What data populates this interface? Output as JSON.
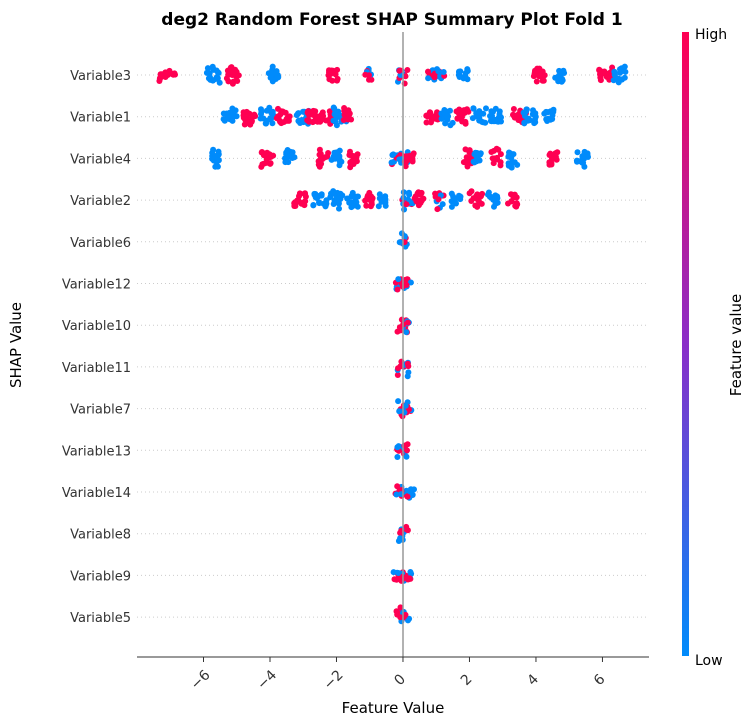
{
  "chart_data": {
    "type": "scatter",
    "subtype": "shap-beeswarm",
    "title": "deg2 Random Forest SHAP Summary Plot Fold 1",
    "xlabel": "Feature Value",
    "ylabel": "SHAP Value",
    "xlim": [
      -8.0,
      7.4
    ],
    "xticks": [
      -6,
      -4,
      -2,
      0,
      2,
      4,
      6
    ],
    "xtick_labels": [
      "−6",
      "−4",
      "−2",
      "0",
      "2",
      "4",
      "6"
    ],
    "grid": false,
    "colors": {
      "high": "#ff0052",
      "low": "#008bfb"
    },
    "colorbar": {
      "label": "Feature value",
      "high_label": "High",
      "low_label": "Low"
    },
    "features": [
      {
        "name": "Variable3",
        "clusters": [
          {
            "x": -7.1,
            "c": 1,
            "w": 0.25
          },
          {
            "x": -5.7,
            "c": 0,
            "w": 0.2
          },
          {
            "x": -5.1,
            "c": 1,
            "w": 0.2
          },
          {
            "x": -3.9,
            "c": 0,
            "w": 0.15
          },
          {
            "x": -2.1,
            "c": 1,
            "w": 0.15
          },
          {
            "x": -1.05,
            "c": 0.6,
            "w": 0.12
          },
          {
            "x": 0.0,
            "c": 0.3,
            "w": 0.15
          },
          {
            "x": 1.0,
            "c": 0.3,
            "w": 0.25
          },
          {
            "x": 1.8,
            "c": 0,
            "w": 0.15
          },
          {
            "x": 4.1,
            "c": 1,
            "w": 0.2
          },
          {
            "x": 4.7,
            "c": 0,
            "w": 0.15
          },
          {
            "x": 6.1,
            "c": 1,
            "w": 0.2
          },
          {
            "x": 6.5,
            "c": 0,
            "w": 0.2
          }
        ]
      },
      {
        "name": "Variable1",
        "clusters": [
          {
            "x": -5.2,
            "c": 0,
            "w": 0.2
          },
          {
            "x": -4.6,
            "c": 1,
            "w": 0.2
          },
          {
            "x": -4.1,
            "c": 0,
            "w": 0.2
          },
          {
            "x": -3.6,
            "c": 1,
            "w": 0.2
          },
          {
            "x": -3.0,
            "c": 0,
            "w": 0.2
          },
          {
            "x": -2.7,
            "c": 1,
            "w": 0.2
          },
          {
            "x": -2.3,
            "c": 1,
            "w": 0.2
          },
          {
            "x": -1.9,
            "c": 0,
            "w": 0.2
          },
          {
            "x": -1.7,
            "c": 1,
            "w": 0.15
          },
          {
            "x": 0.9,
            "c": 1,
            "w": 0.2
          },
          {
            "x": 1.3,
            "c": 0,
            "w": 0.2
          },
          {
            "x": 1.8,
            "c": 1,
            "w": 0.2
          },
          {
            "x": 2.3,
            "c": 0,
            "w": 0.2
          },
          {
            "x": 2.8,
            "c": 0,
            "w": 0.2
          },
          {
            "x": 3.5,
            "c": 1,
            "w": 0.2
          },
          {
            "x": 3.8,
            "c": 0,
            "w": 0.2
          },
          {
            "x": 4.4,
            "c": 0,
            "w": 0.15
          }
        ]
      },
      {
        "name": "Variable4",
        "clusters": [
          {
            "x": -5.6,
            "c": 0,
            "w": 0.15
          },
          {
            "x": -4.1,
            "c": 1,
            "w": 0.2
          },
          {
            "x": -3.4,
            "c": 0,
            "w": 0.15
          },
          {
            "x": -2.4,
            "c": 1,
            "w": 0.15
          },
          {
            "x": -2.0,
            "c": 0,
            "w": 0.15
          },
          {
            "x": -1.5,
            "c": 1,
            "w": 0.15
          },
          {
            "x": -0.1,
            "c": 0.2,
            "w": 0.25
          },
          {
            "x": 0.2,
            "c": 1,
            "w": 0.15
          },
          {
            "x": 2.0,
            "c": 1,
            "w": 0.2
          },
          {
            "x": 2.2,
            "c": 0,
            "w": 0.15
          },
          {
            "x": 2.8,
            "c": 1,
            "w": 0.15
          },
          {
            "x": 3.3,
            "c": 0,
            "w": 0.15
          },
          {
            "x": 4.5,
            "c": 1,
            "w": 0.15
          },
          {
            "x": 5.4,
            "c": 0,
            "w": 0.2
          }
        ]
      },
      {
        "name": "Variable2",
        "clusters": [
          {
            "x": -3.1,
            "c": 1,
            "w": 0.2
          },
          {
            "x": -2.5,
            "c": 0,
            "w": 0.2
          },
          {
            "x": -2.0,
            "c": 0,
            "w": 0.2
          },
          {
            "x": -1.5,
            "c": 0,
            "w": 0.2
          },
          {
            "x": -1.0,
            "c": 1,
            "w": 0.15
          },
          {
            "x": -0.6,
            "c": 0,
            "w": 0.15
          },
          {
            "x": 0.1,
            "c": 0.5,
            "w": 0.2
          },
          {
            "x": 0.5,
            "c": 1,
            "w": 0.15
          },
          {
            "x": 1.1,
            "c": 0.6,
            "w": 0.15
          },
          {
            "x": 1.6,
            "c": 0,
            "w": 0.15
          },
          {
            "x": 2.2,
            "c": 1,
            "w": 0.2
          },
          {
            "x": 2.7,
            "c": 0,
            "w": 0.15
          },
          {
            "x": 3.3,
            "c": 1,
            "w": 0.15
          }
        ]
      },
      {
        "name": "Variable6",
        "clusters": [
          {
            "x": 0.0,
            "c": 0.5,
            "w": 0.15
          }
        ]
      },
      {
        "name": "Variable12",
        "clusters": [
          {
            "x": 0.0,
            "c": 0.5,
            "w": 0.25
          }
        ]
      },
      {
        "name": "Variable10",
        "clusters": [
          {
            "x": 0.0,
            "c": 0.5,
            "w": 0.18
          }
        ]
      },
      {
        "name": "Variable11",
        "clusters": [
          {
            "x": 0.0,
            "c": 0.5,
            "w": 0.18
          }
        ]
      },
      {
        "name": "Variable7",
        "clusters": [
          {
            "x": 0.05,
            "c": 0.5,
            "w": 0.2
          }
        ]
      },
      {
        "name": "Variable13",
        "clusters": [
          {
            "x": 0.0,
            "c": 0.5,
            "w": 0.18
          }
        ]
      },
      {
        "name": "Variable14",
        "clusters": [
          {
            "x": 0.05,
            "c": 0.5,
            "w": 0.3
          }
        ]
      },
      {
        "name": "Variable8",
        "clusters": [
          {
            "x": 0.0,
            "c": 0.5,
            "w": 0.15
          }
        ]
      },
      {
        "name": "Variable9",
        "clusters": [
          {
            "x": 0.0,
            "c": 0.5,
            "w": 0.3
          }
        ]
      },
      {
        "name": "Variable5",
        "clusters": [
          {
            "x": 0.0,
            "c": 0.5,
            "w": 0.2
          }
        ]
      }
    ]
  }
}
